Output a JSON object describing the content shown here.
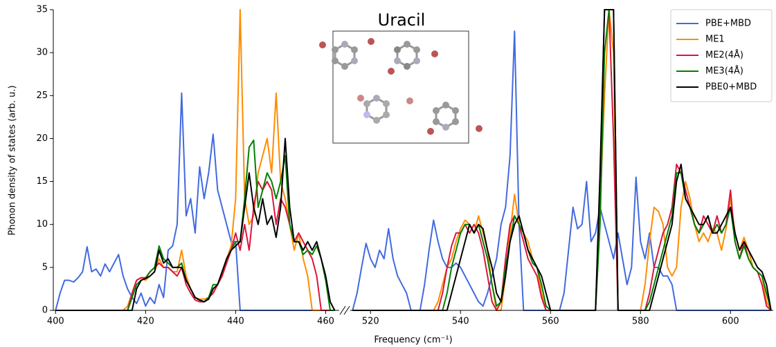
{
  "chart_data": [
    {
      "type": "line",
      "ylabel": "Phonon density of states (arb. u.)",
      "xlim": [
        399.5,
        463
      ],
      "ylim": [
        0,
        35
      ],
      "xticks": [
        400,
        420,
        440,
        460
      ],
      "yticks": [
        0,
        5,
        10,
        15,
        20,
        25,
        30,
        35
      ],
      "x": [
        400,
        401,
        402,
        403,
        404,
        405,
        406,
        407,
        408,
        409,
        410,
        411,
        412,
        413,
        414,
        415,
        416,
        417,
        418,
        419,
        420,
        421,
        422,
        423,
        424,
        425,
        426,
        427,
        428,
        429,
        430,
        431,
        432,
        433,
        434,
        435,
        436,
        437,
        438,
        439,
        440,
        441,
        442,
        443,
        444,
        445,
        446,
        447,
        448,
        449,
        450,
        451,
        452,
        453,
        454,
        455,
        456,
        457,
        458,
        459,
        460,
        461,
        462
      ],
      "series": [
        {
          "name": "PBE+MBD",
          "color": "#4169e1",
          "values": [
            0,
            2,
            3.5,
            3.5,
            3.3,
            3.8,
            4.5,
            7.4,
            4.5,
            4.8,
            4,
            5.4,
            4.5,
            5.5,
            6.5,
            4,
            2.5,
            1.5,
            0.8,
            2,
            0.5,
            1.5,
            0.8,
            3,
            1.5,
            7,
            7.5,
            10,
            25.3,
            11,
            13,
            9,
            16.7,
            13,
            16,
            20.5,
            14,
            12,
            10,
            8,
            8,
            0,
            0,
            0,
            0,
            0,
            0,
            0,
            0,
            0,
            0,
            0,
            0,
            0,
            0,
            0,
            0,
            0,
            0,
            0,
            0,
            0,
            0
          ]
        },
        {
          "name": "ME1",
          "color": "#ff8c00",
          "values": [
            0,
            0,
            0,
            0,
            0,
            0,
            0,
            0,
            0,
            0,
            0,
            0,
            0,
            0,
            0,
            0,
            0.5,
            2,
            3.5,
            3.8,
            3.5,
            4,
            4.5,
            6,
            5,
            5,
            4.5,
            4.5,
            7,
            4,
            2.5,
            1.5,
            1.3,
            1.3,
            1.5,
            2,
            3,
            4,
            6,
            7.5,
            13,
            35,
            13,
            10,
            11,
            16,
            18,
            20,
            16,
            25.3,
            15,
            13,
            10,
            7,
            9,
            6,
            4,
            0,
            0,
            0,
            0,
            0,
            0
          ]
        },
        {
          "name": "ME2(4Å)",
          "color": "#dc143c",
          "values": [
            0,
            0,
            0,
            0,
            0,
            0,
            0,
            0,
            0,
            0,
            0,
            0,
            0,
            0,
            0,
            0,
            0,
            2,
            3.5,
            3.8,
            3.8,
            4.5,
            5,
            5.5,
            5,
            5,
            4.5,
            4,
            5,
            3,
            2,
            1.2,
            1,
            1,
            1.5,
            2,
            3,
            4,
            5.5,
            7,
            9,
            7,
            10,
            7,
            12,
            15,
            14,
            15,
            14,
            10,
            13,
            12,
            10,
            8,
            9,
            8,
            7,
            6,
            4,
            0,
            0,
            0,
            0
          ]
        },
        {
          "name": "ME3(4Å)",
          "color": "#008000",
          "values": [
            0,
            0,
            0,
            0,
            0,
            0,
            0,
            0,
            0,
            0,
            0,
            0,
            0,
            0,
            0,
            0,
            0,
            1.5,
            3,
            3.5,
            3.7,
            4.5,
            5,
            7.5,
            6,
            5.5,
            5,
            5,
            5.5,
            3.5,
            2.5,
            1.5,
            1.2,
            1,
            1.5,
            3,
            3,
            4.5,
            6,
            7,
            8,
            8,
            13,
            19,
            19.8,
            12,
            14,
            16,
            15,
            13,
            15,
            18,
            10,
            8,
            8,
            6.5,
            7,
            6.5,
            7.5,
            6,
            3.5,
            0,
            0
          ]
        },
        {
          "name": "PBE0+MBD",
          "color": "#000000",
          "values": [
            0,
            0,
            0,
            0,
            0,
            0,
            0,
            0,
            0,
            0,
            0,
            0,
            0,
            0,
            0,
            0,
            0,
            0,
            2.5,
            3.5,
            3.7,
            4,
            4.5,
            7,
            5.5,
            6,
            5,
            5,
            5,
            3.5,
            2.5,
            1.5,
            1.2,
            1,
            1.3,
            2.5,
            3,
            4.5,
            6,
            7,
            7.5,
            8,
            12,
            16,
            12,
            10,
            13,
            10,
            11,
            8.5,
            12,
            20,
            12,
            8,
            8,
            7,
            8,
            7,
            8,
            6,
            4,
            1,
            0
          ]
        }
      ]
    },
    {
      "type": "line",
      "title": "Uracil",
      "xlabel": "Frequency (cm⁻¹)",
      "xlim": [
        515.5,
        609.5
      ],
      "ylim": [
        0,
        35
      ],
      "xticks": [
        520,
        540,
        560,
        580,
        600
      ],
      "legend": "upper right",
      "x": [
        516,
        517,
        518,
        519,
        520,
        521,
        522,
        523,
        524,
        525,
        526,
        527,
        528,
        529,
        530,
        531,
        532,
        533,
        534,
        535,
        536,
        537,
        538,
        539,
        540,
        541,
        542,
        543,
        544,
        545,
        546,
        547,
        548,
        549,
        550,
        551,
        552,
        553,
        554,
        555,
        556,
        557,
        558,
        559,
        560,
        561,
        562,
        563,
        564,
        565,
        566,
        567,
        568,
        569,
        570,
        571,
        572,
        573,
        574,
        575,
        576,
        577,
        578,
        579,
        580,
        581,
        582,
        583,
        584,
        585,
        586,
        587,
        588,
        589,
        590,
        591,
        592,
        593,
        594,
        595,
        596,
        597,
        598,
        599,
        600,
        601,
        602,
        603,
        604,
        605,
        606,
        607,
        608,
        609
      ],
      "series": [
        {
          "name": "PBE+MBD",
          "color": "#4169e1",
          "values": [
            0,
            2,
            5,
            7.8,
            6,
            5,
            7,
            6,
            9.5,
            6,
            4,
            3,
            2,
            0,
            0,
            0,
            3,
            7,
            10.5,
            8,
            6,
            5,
            5,
            5.5,
            5,
            4,
            3,
            2,
            1,
            0.5,
            2,
            4,
            6,
            10,
            12,
            18,
            32.5,
            10,
            0,
            0,
            0,
            0,
            0,
            0,
            0,
            0,
            0,
            2,
            7,
            12,
            9.5,
            10,
            15,
            8,
            9,
            12,
            10,
            8,
            6,
            9,
            6,
            3,
            5,
            15.5,
            8,
            6,
            9,
            5,
            5,
            4,
            4,
            3,
            0,
            0,
            0,
            0,
            0,
            0,
            0,
            0,
            0,
            0,
            0,
            0,
            0,
            0,
            0,
            0,
            0,
            0,
            0,
            0,
            0,
            0
          ]
        },
        {
          "name": "ME1",
          "color": "#ff8c00",
          "values": [
            0,
            0,
            0,
            0,
            0,
            0,
            0,
            0,
            0,
            0,
            0,
            0,
            0,
            0,
            0,
            0,
            0,
            0,
            0,
            1,
            3,
            5,
            6,
            8,
            9.5,
            10.5,
            10,
            9,
            11,
            9,
            7,
            3,
            0,
            0,
            4,
            9,
            13.5,
            10,
            9,
            8,
            6,
            5,
            2,
            0,
            0,
            0,
            0,
            0,
            0,
            0,
            0,
            0,
            0,
            0,
            0,
            12,
            25,
            35,
            30,
            0,
            0,
            0,
            0,
            0,
            0,
            3,
            8,
            12,
            11.5,
            10,
            5,
            4,
            5,
            12,
            15,
            13,
            10,
            8,
            9,
            8,
            9.5,
            9,
            7,
            9.5,
            13,
            9,
            7,
            8.5,
            7,
            5,
            4.5,
            4,
            1,
            0
          ]
        },
        {
          "name": "ME2(4Å)",
          "color": "#dc143c",
          "values": [
            0,
            0,
            0,
            0,
            0,
            0,
            0,
            0,
            0,
            0,
            0,
            0,
            0,
            0,
            0,
            0,
            0,
            0,
            0,
            0,
            2,
            5,
            7.5,
            9,
            9,
            10,
            9,
            10,
            9,
            7,
            4,
            1,
            0,
            1,
            6,
            10,
            11,
            10,
            8,
            6,
            5,
            4,
            1.5,
            0,
            0,
            0,
            0,
            0,
            0,
            0,
            0,
            0,
            0,
            0,
            0,
            15,
            35,
            35,
            20,
            0,
            0,
            0,
            0,
            0,
            0,
            0,
            2,
            5,
            7,
            9,
            10,
            12,
            17,
            16,
            14,
            12,
            10,
            9,
            11,
            10,
            9,
            11,
            9,
            10,
            14,
            8,
            6,
            8,
            6,
            5,
            4.5,
            3,
            0.5,
            0
          ]
        },
        {
          "name": "ME3(4Å)",
          "color": "#008000",
          "values": [
            0,
            0,
            0,
            0,
            0,
            0,
            0,
            0,
            0,
            0,
            0,
            0,
            0,
            0,
            0,
            0,
            0,
            0,
            0,
            0,
            0,
            2,
            5,
            7,
            9,
            10,
            10,
            9,
            10,
            8,
            6,
            3,
            0.5,
            1,
            5,
            8,
            11,
            10,
            9,
            7,
            5.5,
            5,
            3,
            0.5,
            0,
            0,
            0,
            0,
            0,
            0,
            0,
            0,
            0,
            0,
            0,
            10,
            30,
            35,
            35,
            0,
            0,
            0,
            0,
            0,
            0,
            0,
            1,
            3,
            5,
            7,
            9,
            11,
            16,
            16,
            13,
            12,
            10,
            9,
            10,
            11,
            9,
            10,
            9,
            10,
            12,
            8,
            6,
            7.5,
            6,
            5,
            4.5,
            4,
            2,
            0
          ]
        },
        {
          "name": "PBE0+MBD",
          "color": "#000000",
          "values": [
            0,
            0,
            0,
            0,
            0,
            0,
            0,
            0,
            0,
            0,
            0,
            0,
            0,
            0,
            0,
            0,
            0,
            0,
            0,
            0,
            0,
            0,
            2,
            4,
            6,
            8,
            10,
            9,
            10,
            9.5,
            7,
            5,
            2,
            1,
            4,
            8,
            10,
            11,
            9,
            7,
            6,
            5,
            4,
            2,
            0,
            0,
            0,
            0,
            0,
            0,
            0,
            0,
            0,
            0,
            0,
            16,
            35,
            35,
            35,
            0,
            0,
            0,
            0,
            0,
            0,
            0,
            0,
            2,
            4,
            6,
            8,
            10,
            15,
            17,
            13,
            12,
            11,
            10,
            10,
            11,
            9,
            9,
            10,
            11,
            12,
            9,
            7,
            8,
            7,
            6,
            5,
            4.5,
            3,
            0
          ]
        }
      ]
    }
  ]
}
